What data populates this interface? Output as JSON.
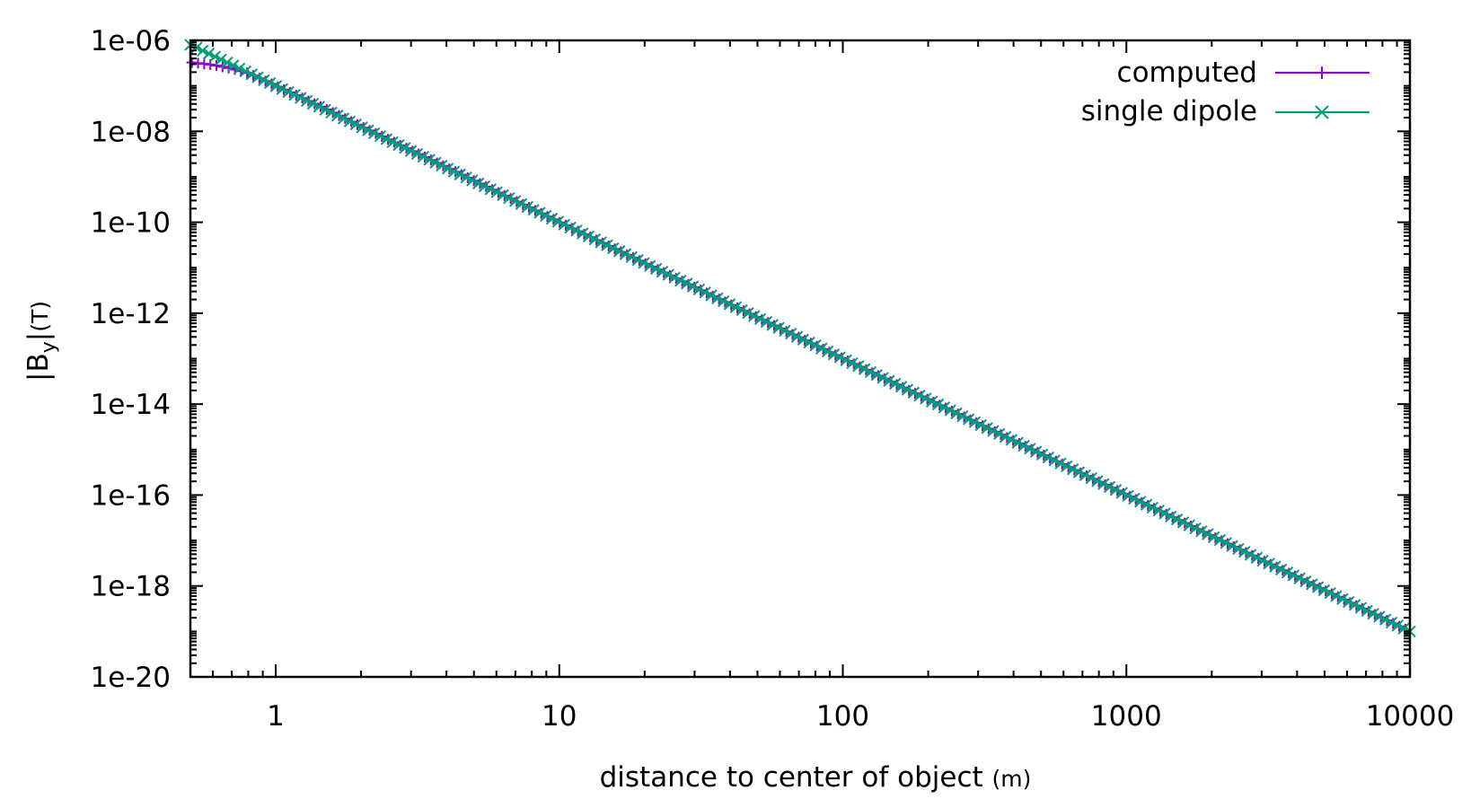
{
  "chart_data": {
    "type": "line",
    "title": "",
    "xlabel": "distance to center of object",
    "xunit": "(m)",
    "ylabel_prefix": "|B",
    "ylabel_sub": "y",
    "ylabel_suffix": "|",
    "yunit": "(T)",
    "xscale": "log",
    "yscale": "log",
    "xlim": [
      0.5,
      10000
    ],
    "ylim": [
      1e-20,
      1e-06
    ],
    "xticks": [
      1,
      10,
      100,
      1000,
      10000
    ],
    "xtick_labels": [
      "1",
      "10",
      "100",
      "1000",
      "10000"
    ],
    "yticks": [
      1e-20,
      1e-18,
      1e-16,
      1e-14,
      1e-12,
      1e-10,
      1e-08,
      1e-06
    ],
    "ytick_labels": [
      "1e-20",
      "1e-18",
      "1e-16",
      "1e-14",
      "1e-12",
      "1e-10",
      "1e-08",
      "1e-06"
    ],
    "grid": false,
    "legend_position": "top-right",
    "series": [
      {
        "name": "computed",
        "color": "#9400d3",
        "marker": "plus",
        "x": [
          0.5,
          0.6,
          0.7,
          0.8,
          1,
          1.5,
          2,
          3,
          5,
          10,
          100,
          1000,
          10000
        ],
        "y": [
          3.3e-07,
          2.9e-07,
          2.4e-07,
          1.9e-07,
          1e-07,
          3.1e-08,
          1.28e-08,
          3.8e-09,
          8.2e-10,
          1e-10,
          1e-13,
          1e-16,
          1e-19
        ]
      },
      {
        "name": "single dipole",
        "color": "#009e73",
        "marker": "x",
        "x": [
          0.5,
          10000
        ],
        "y": [
          8e-07,
          1e-19
        ]
      }
    ]
  }
}
